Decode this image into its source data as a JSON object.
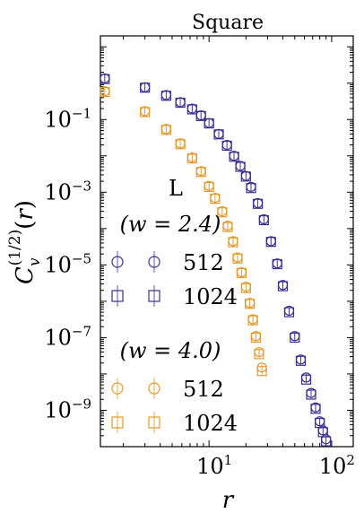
{
  "chart_data": {
    "type": "scatter",
    "title": "Square",
    "xlabel": "r",
    "ylabel": "C_v^{(1/2)}(r)",
    "x_scale": "log",
    "y_scale": "log",
    "xlim": [
      1.3,
      150
    ],
    "ylim": [
      1e-10,
      20
    ],
    "x_ticks": [
      {
        "value": 10,
        "base": "10",
        "exp": "1"
      },
      {
        "value": 100,
        "base": "10",
        "exp": "2"
      }
    ],
    "y_ticks": [
      {
        "value": 0.1,
        "base": "10",
        "exp": "−1"
      },
      {
        "value": 0.001,
        "base": "10",
        "exp": "−3"
      },
      {
        "value": 1e-05,
        "base": "10",
        "exp": "−5"
      },
      {
        "value": 1e-07,
        "base": "10",
        "exp": "−7"
      },
      {
        "value": 1e-09,
        "base": "10",
        "exp": "−9"
      }
    ],
    "legend": {
      "title": "L",
      "groups": [
        {
          "label": "(w = 2.4)",
          "entries": [
            {
              "marker": "circle",
              "label": "512",
              "color": "#3a2f8f"
            },
            {
              "marker": "square",
              "label": "1024",
              "color": "#3a2f8f"
            }
          ]
        },
        {
          "label": "(w = 4.0)",
          "entries": [
            {
              "marker": "circle",
              "label": "512",
              "color": "#e09a2c"
            },
            {
              "marker": "square",
              "label": "1024",
              "color": "#e09a2c"
            }
          ]
        }
      ]
    },
    "series": [
      {
        "w": "2.4",
        "L": "512",
        "marker": "circle",
        "color": "#3a2f8f",
        "x": [
          1.41,
          3.0,
          4.47,
          5.83,
          7.28,
          8.6,
          10.0,
          12.0,
          14.0,
          16.0,
          18.0,
          20.0,
          22.0,
          25.0,
          28.0,
          32.0,
          36.0,
          40.0,
          45.0,
          50.0,
          56.0,
          62.0,
          68.0,
          74.0,
          80.0,
          85.0,
          90.0,
          94.0,
          97.0
        ],
        "y": [
          1.35,
          0.77,
          0.47,
          0.3,
          0.2,
          0.13,
          0.08,
          0.04,
          0.02,
          0.01,
          0.0053,
          0.0028,
          0.0014,
          0.0005,
          0.00018,
          4.5e-05,
          1.1e-05,
          2.8e-06,
          5.5e-07,
          1.1e-07,
          2.5e-08,
          8e-09,
          3e-09,
          1.2e-09,
          5e-10,
          2.8e-10,
          1.6e-10,
          9.5e-11,
          6e-11
        ]
      },
      {
        "w": "2.4",
        "L": "1024",
        "marker": "square",
        "color": "#3a2f8f",
        "x": [
          1.41,
          3.0,
          4.47,
          5.83,
          7.28,
          8.6,
          10.0,
          12.0,
          14.0,
          16.0,
          18.0,
          20.0,
          22.0,
          25.0,
          28.0,
          32.0,
          36.0,
          40.0,
          45.0,
          50.0,
          56.0,
          62.0,
          68.0,
          74.0,
          80.0,
          85.0,
          90.0,
          94.0,
          97.0
        ],
        "y": [
          1.3,
          0.75,
          0.45,
          0.29,
          0.19,
          0.125,
          0.078,
          0.039,
          0.019,
          0.0095,
          0.005,
          0.0027,
          0.0013,
          0.00048,
          0.00017,
          4.3e-05,
          1.05e-05,
          2.6e-06,
          5e-07,
          1e-07,
          2.3e-08,
          7e-09,
          2.7e-09,
          1.1e-09,
          4.5e-10,
          2.5e-10,
          1.4e-10,
          8.5e-11,
          4.5e-11
        ]
      },
      {
        "w": "4.0",
        "L": "512",
        "marker": "circle",
        "color": "#e09a2c",
        "x": [
          1.41,
          3.0,
          4.47,
          5.83,
          7.28,
          8.6,
          10.0,
          11.2,
          12.8,
          14.2,
          15.7,
          17.1,
          18.4,
          20.0,
          21.5,
          22.8,
          24.1,
          25.6,
          27.0
        ],
        "y": [
          0.6,
          0.17,
          0.055,
          0.022,
          0.009,
          0.0038,
          0.0015,
          0.0007,
          0.0003,
          0.00012,
          4.5e-05,
          1.6e-05,
          6.3e-06,
          2.5e-06,
          9e-07,
          3.2e-07,
          1.1e-07,
          4e-08,
          1.5e-08
        ]
      },
      {
        "w": "4.0",
        "L": "1024",
        "marker": "square",
        "color": "#e09a2c",
        "x": [
          1.41,
          3.0,
          4.47,
          5.83,
          7.28,
          8.6,
          10.0,
          11.2,
          12.8,
          14.2,
          15.7,
          17.1,
          18.4,
          20.0,
          21.5,
          22.8,
          24.1,
          25.6,
          27.0
        ],
        "y": [
          0.57,
          0.16,
          0.052,
          0.021,
          0.0085,
          0.0036,
          0.0014,
          0.00066,
          0.00028,
          0.00011,
          4.2e-05,
          1.5e-05,
          6e-06,
          2.3e-06,
          8.5e-07,
          3e-07,
          1e-07,
          3.5e-08,
          1.2e-08
        ]
      }
    ]
  }
}
